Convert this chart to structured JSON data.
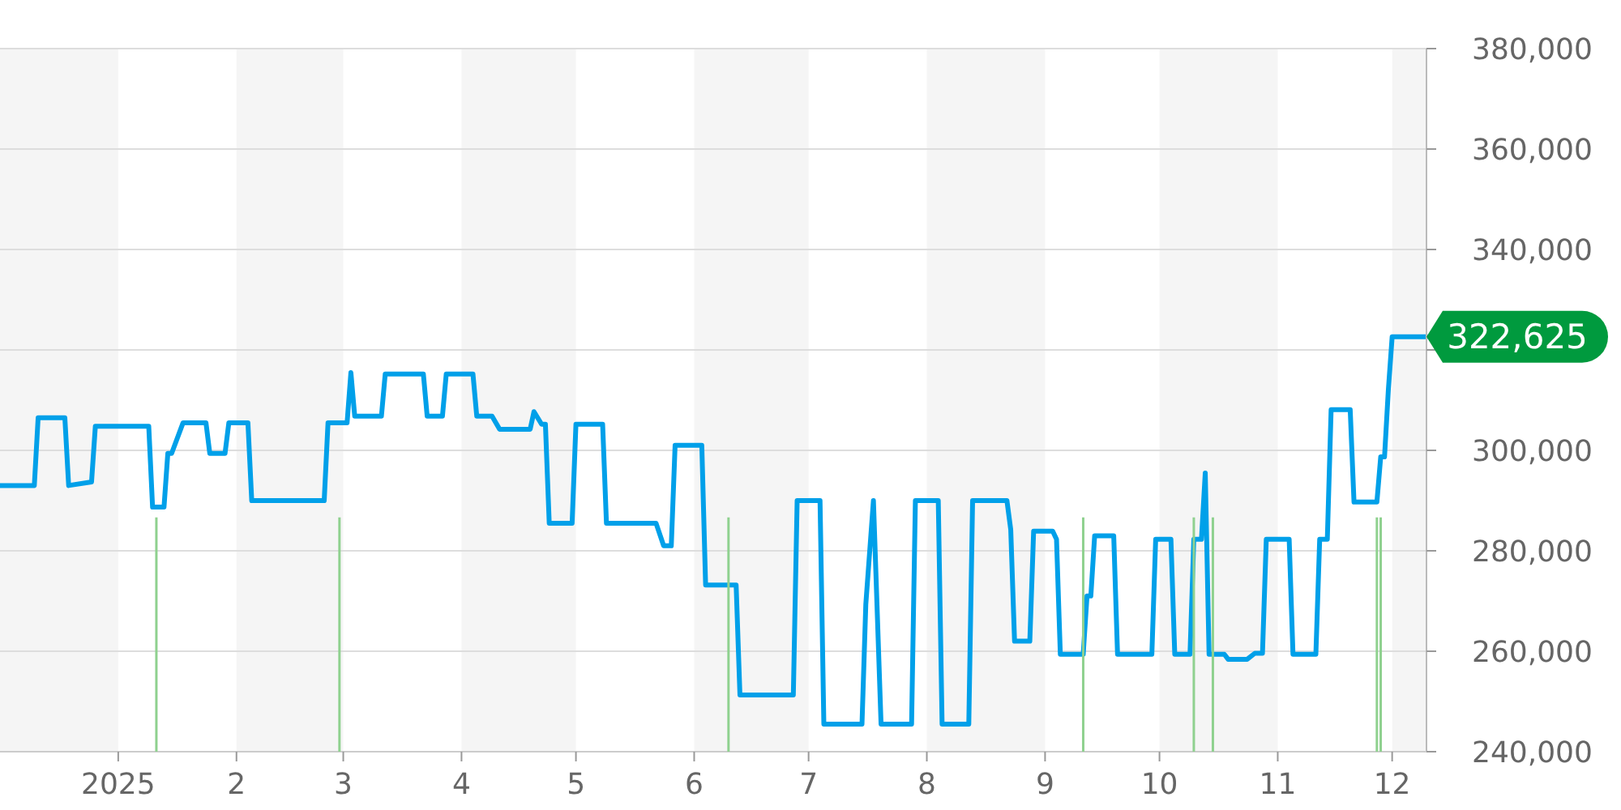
{
  "chart_data": {
    "type": "line",
    "xlim": [
      "2024-12-01",
      "2025-12-10"
    ],
    "xticks": [
      {
        "value": "2025-01-01",
        "label": "2025"
      },
      {
        "value": "2025-02-01",
        "label": "2"
      },
      {
        "value": "2025-03-01",
        "label": "3"
      },
      {
        "value": "2025-04-01",
        "label": "4"
      },
      {
        "value": "2025-05-01",
        "label": "5"
      },
      {
        "value": "2025-06-01",
        "label": "6"
      },
      {
        "value": "2025-07-01",
        "label": "7"
      },
      {
        "value": "2025-08-01",
        "label": "8"
      },
      {
        "value": "2025-09-01",
        "label": "9"
      },
      {
        "value": "2025-10-01",
        "label": "10"
      },
      {
        "value": "2025-11-01",
        "label": "11"
      },
      {
        "value": "2025-12-01",
        "label": "12"
      }
    ],
    "ylim": [
      240000,
      380000
    ],
    "yticks": [
      {
        "value": 240000,
        "label": "240,000"
      },
      {
        "value": 260000,
        "label": "260,000"
      },
      {
        "value": 280000,
        "label": "280,000"
      },
      {
        "value": 300000,
        "label": "300,000"
      },
      {
        "value": 320000,
        "label": null
      },
      {
        "value": 340000,
        "label": "340,000"
      },
      {
        "value": 360000,
        "label": "360,000"
      },
      {
        "value": 380000,
        "label": "380,000"
      }
    ],
    "ref_lines": [
      {
        "axis": "x",
        "value": "2025-01-11",
        "color": "#8fd18f"
      },
      {
        "axis": "x",
        "value": "2025-02-28",
        "color": "#8fd18f"
      },
      {
        "axis": "x",
        "value": "2025-06-10",
        "color": "#8fd18f"
      },
      {
        "axis": "x",
        "value": "2025-09-11",
        "color": "#8fd18f"
      },
      {
        "axis": "x",
        "value": "2025-10-10",
        "color": "#8fd18f"
      },
      {
        "axis": "x",
        "value": "2025-10-15",
        "color": "#8fd18f"
      },
      {
        "axis": "x",
        "value": "2025-11-27",
        "color": "#8fd18f"
      },
      {
        "axis": "x",
        "value": "2025-11-28",
        "color": "#8fd18f"
      }
    ],
    "grid": "y",
    "line_style": "solid",
    "series": [
      {
        "color": "#00a0e9",
        "x": [
          "2024-12-01",
          "2024-12-10",
          "2024-12-11",
          "2024-12-18",
          "2024-12-19",
          "2024-12-25",
          "2024-12-26",
          "2025-01-09",
          "2025-01-10",
          "2025-01-13",
          "2025-01-14",
          "2025-01-15",
          "2025-01-18",
          "2025-01-24",
          "2025-01-25",
          "2025-01-29",
          "2025-01-30",
          "2025-02-04",
          "2025-02-05",
          "2025-02-24",
          "2025-02-25",
          "2025-03-02",
          "2025-03-03",
          "2025-03-04",
          "2025-03-11",
          "2025-03-12",
          "2025-03-22",
          "2025-03-23",
          "2025-03-27",
          "2025-03-28",
          "2025-04-04",
          "2025-04-05",
          "2025-04-09",
          "2025-04-11",
          "2025-04-19",
          "2025-04-20",
          "2025-04-22",
          "2025-04-23",
          "2025-04-24",
          "2025-04-30",
          "2025-05-01",
          "2025-05-08",
          "2025-05-09",
          "2025-05-22",
          "2025-05-24",
          "2025-05-26",
          "2025-05-27",
          "2025-06-03",
          "2025-06-04",
          "2025-06-12",
          "2025-06-13",
          "2025-06-27",
          "2025-06-28",
          "2025-07-04",
          "2025-07-05",
          "2025-07-15",
          "2025-07-16",
          "2025-07-18",
          "2025-07-20",
          "2025-07-28",
          "2025-07-29",
          "2025-08-04",
          "2025-08-05",
          "2025-08-12",
          "2025-08-13",
          "2025-08-22",
          "2025-08-23",
          "2025-08-24",
          "2025-08-28",
          "2025-08-29",
          "2025-09-03",
          "2025-09-04",
          "2025-09-05",
          "2025-09-11",
          "2025-09-12",
          "2025-09-13",
          "2025-09-14",
          "2025-09-19",
          "2025-09-20",
          "2025-09-29",
          "2025-09-30",
          "2025-10-04",
          "2025-10-05",
          "2025-10-09",
          "2025-10-10",
          "2025-10-12",
          "2025-10-13",
          "2025-10-14",
          "2025-10-18",
          "2025-10-19",
          "2025-10-24",
          "2025-10-26",
          "2025-10-28",
          "2025-10-29",
          "2025-11-04",
          "2025-11-05",
          "2025-11-11",
          "2025-11-12",
          "2025-11-14",
          "2025-11-15",
          "2025-11-20",
          "2025-11-21",
          "2025-11-27",
          "2025-11-28",
          "2025-11-29",
          "2025-11-30",
          "2025-12-01",
          "2025-12-10"
        ],
        "values": [
          293000,
          293000,
          306500,
          306500,
          293000,
          293700,
          304800,
          304800,
          288700,
          288700,
          299400,
          299400,
          305500,
          305500,
          299400,
          299400,
          305500,
          305500,
          290000,
          290000,
          305500,
          305500,
          315500,
          306800,
          306800,
          315200,
          315200,
          306800,
          306800,
          315200,
          315200,
          306800,
          306800,
          304200,
          304200,
          307700,
          305200,
          305200,
          285500,
          285500,
          305200,
          305200,
          285500,
          285500,
          281000,
          281000,
          301000,
          301000,
          273200,
          273200,
          251300,
          251300,
          290000,
          290000,
          245500,
          245500,
          269300,
          290000,
          245500,
          245500,
          290000,
          290000,
          245500,
          245500,
          290000,
          290000,
          284200,
          262000,
          262000,
          283900,
          283900,
          282300,
          259400,
          259400,
          271000,
          271000,
          283000,
          283000,
          259400,
          259400,
          282300,
          282300,
          259400,
          259400,
          282300,
          282300,
          295500,
          259400,
          259400,
          258400,
          258400,
          259600,
          259600,
          282300,
          282300,
          259400,
          259400,
          282300,
          282300,
          308100,
          308100,
          289700,
          289700,
          298700,
          298700,
          312000,
          322625,
          322625
        ]
      }
    ],
    "bands": [
      {
        "axis": "x",
        "from": "2024-12-01",
        "to": "2025-01-01",
        "color": "#f5f5f5"
      },
      {
        "axis": "x",
        "from": "2025-02-01",
        "to": "2025-03-01",
        "color": "#f5f5f5"
      },
      {
        "axis": "x",
        "from": "2025-04-01",
        "to": "2025-05-01",
        "color": "#f5f5f5"
      },
      {
        "axis": "x",
        "from": "2025-06-01",
        "to": "2025-07-01",
        "color": "#f5f5f5"
      },
      {
        "axis": "x",
        "from": "2025-08-01",
        "to": "2025-09-01",
        "color": "#f5f5f5"
      },
      {
        "axis": "x",
        "from": "2025-10-01",
        "to": "2025-11-01",
        "color": "#f5f5f5"
      },
      {
        "axis": "x",
        "from": "2025-12-01",
        "to": "2025-12-10",
        "color": "#f5f5f5"
      }
    ],
    "annotations": [
      {
        "text": "322,625",
        "x": "2025-12-10",
        "y": 322625
      }
    ]
  }
}
